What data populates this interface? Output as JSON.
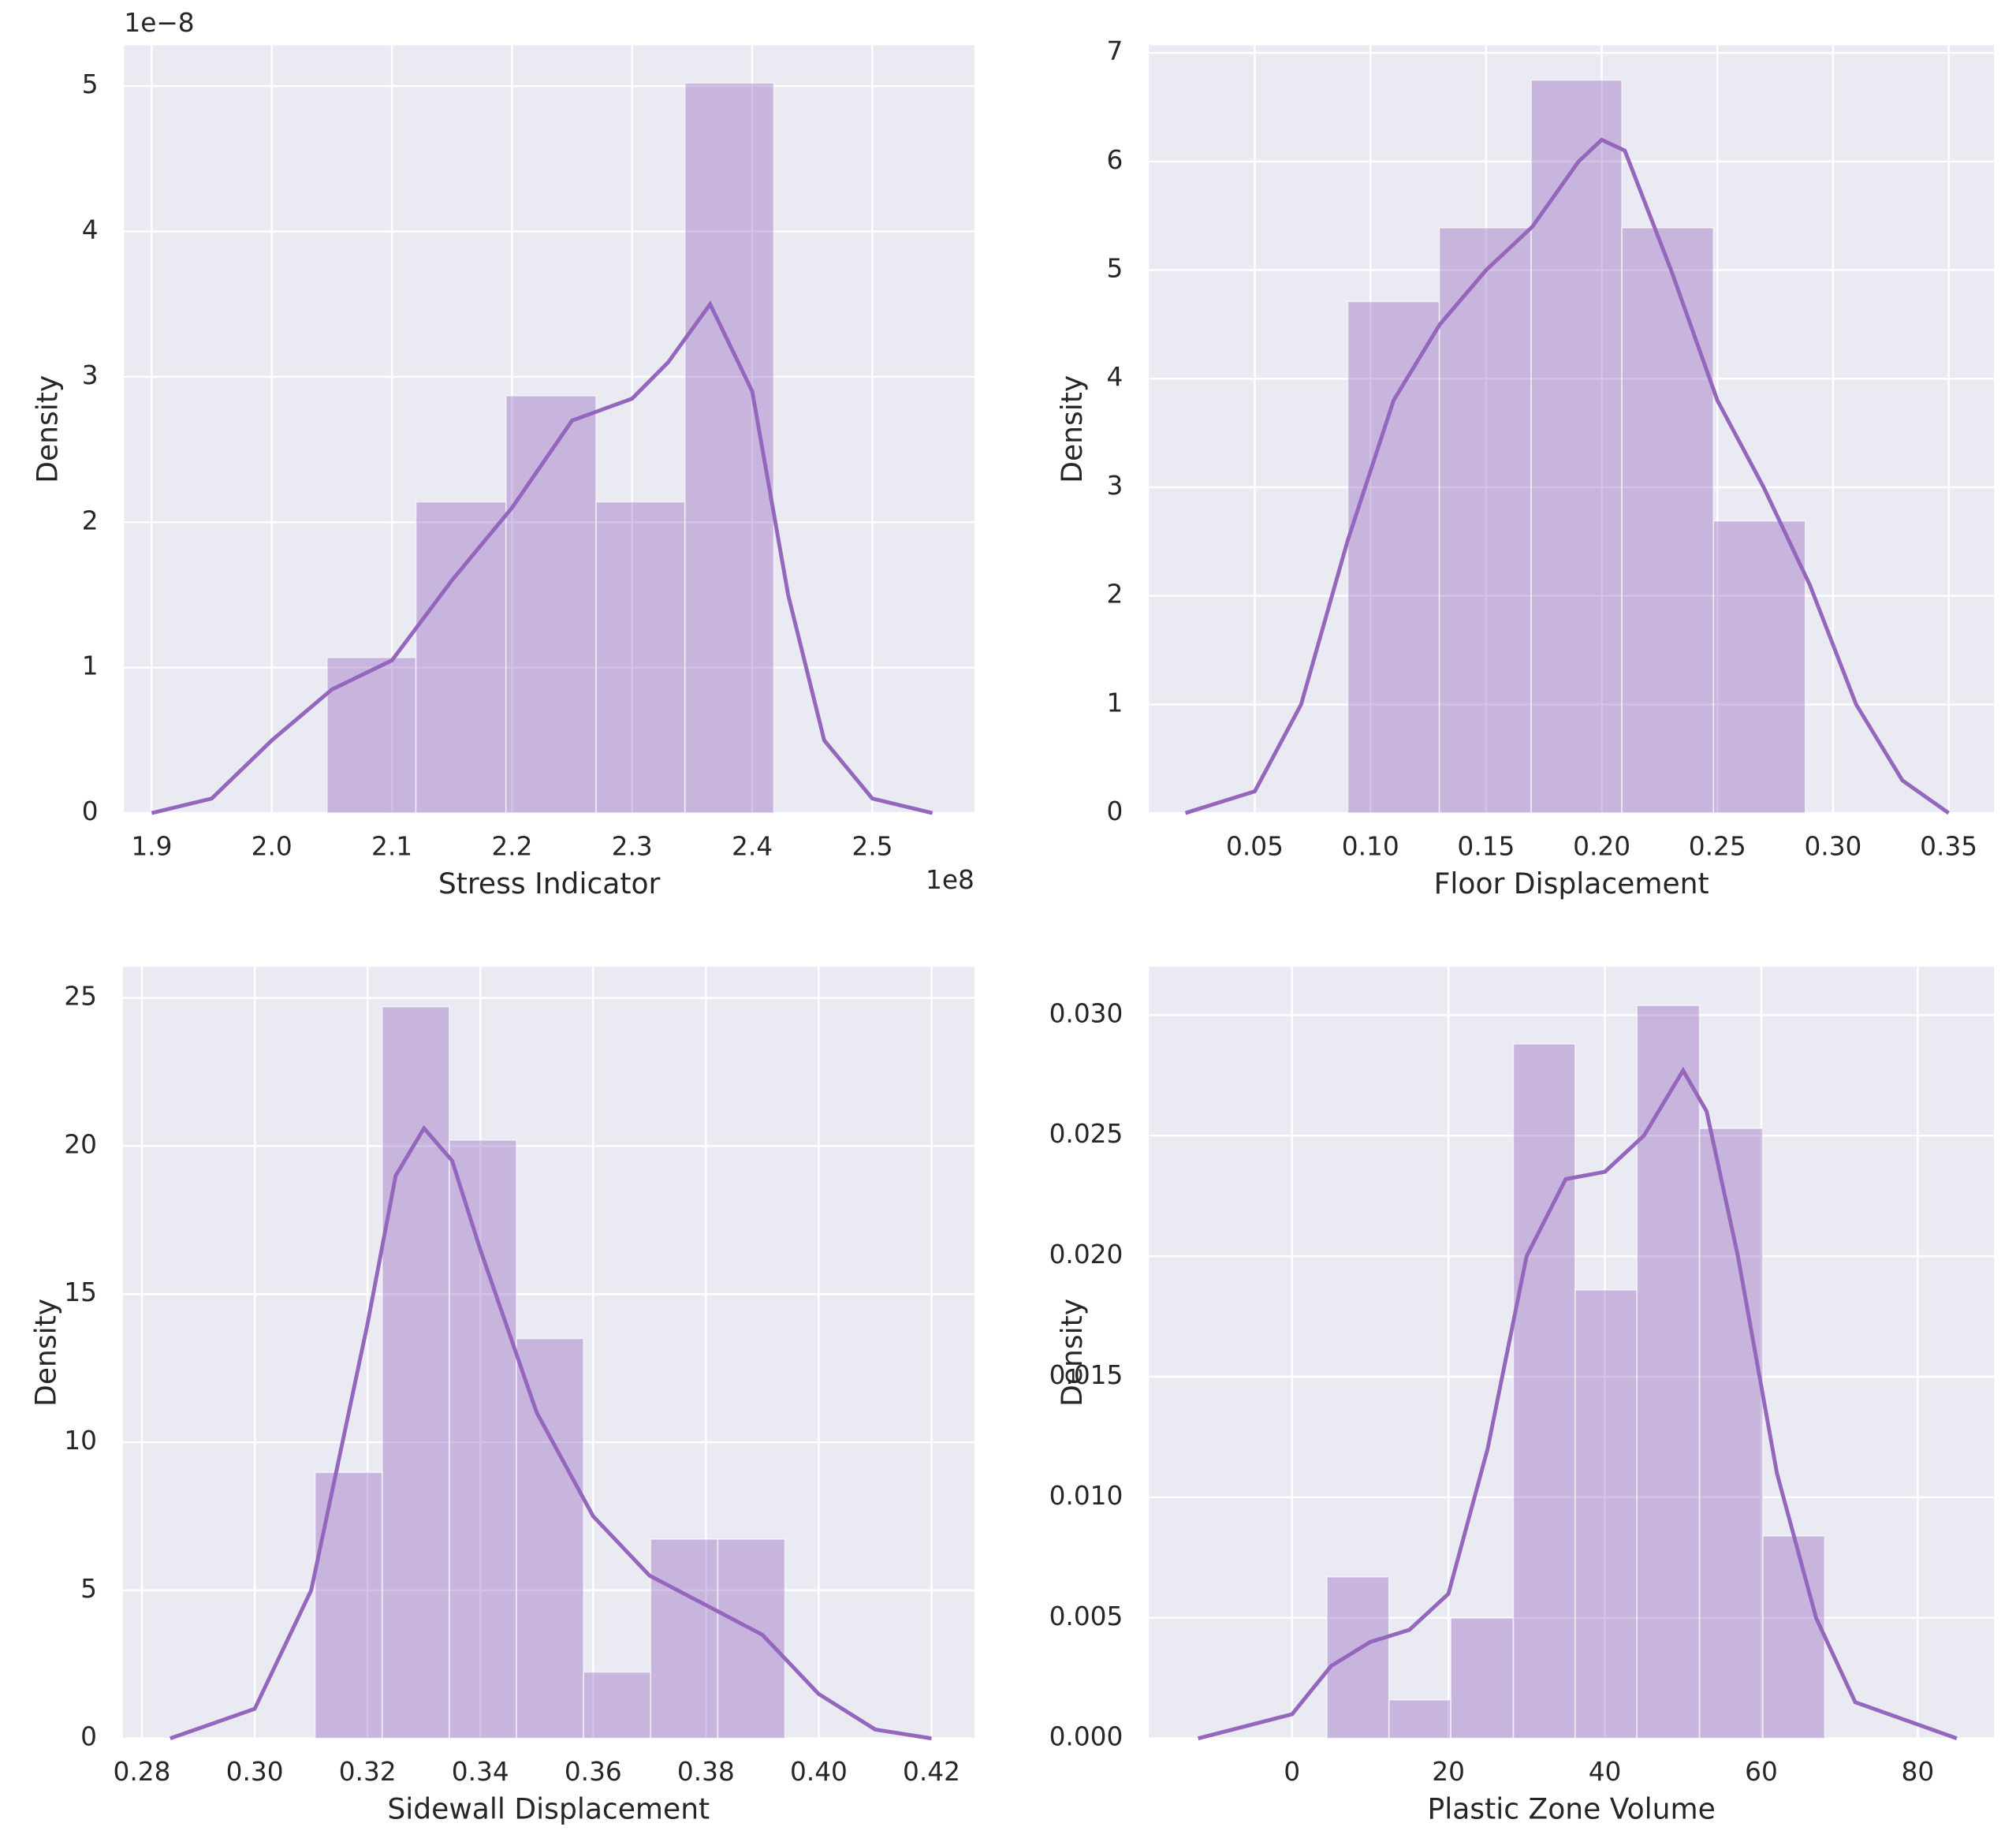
{
  "chart_data": [
    {
      "type": "histogram",
      "xlabel": "Stress Indicator",
      "ylabel": "Density",
      "y_offset_label": "1e−8",
      "x_offset_label": "1e8",
      "color": "#9467bd",
      "grid": true,
      "bins": [
        2.046,
        2.12,
        2.195,
        2.27,
        2.344,
        2.418
      ],
      "values": [
        1.07,
        2.14,
        2.87,
        2.14,
        5.02
      ],
      "kde": {
        "x": [
          1.9,
          1.95,
          2.0,
          2.05,
          2.1,
          2.15,
          2.2,
          2.25,
          2.3,
          2.33,
          2.365,
          2.4,
          2.43,
          2.46,
          2.5,
          2.55
        ],
        "y": [
          0,
          0.1,
          0.5,
          0.85,
          1.05,
          1.6,
          2.1,
          2.7,
          2.85,
          3.1,
          3.5,
          2.9,
          1.5,
          0.5,
          0.1,
          0
        ]
      },
      "xlim": [
        1.877,
        2.585
      ],
      "ylim": [
        0,
        5.28
      ],
      "xticks": [
        1.9,
        {
          "value": 2,
          "label": "2.0"
        },
        2.1,
        2.2,
        2.3,
        2.4,
        2.5
      ],
      "yticks": [
        0,
        1,
        2,
        3,
        4,
        5
      ]
    },
    {
      "type": "histogram",
      "xlabel": "Floor Displacement",
      "ylabel": "Density",
      "color": "#9467bd",
      "grid": true,
      "bins": [
        0.0902,
        0.1298,
        0.1695,
        0.2087,
        0.2483,
        0.288
      ],
      "values": [
        4.71,
        5.39,
        6.75,
        5.39,
        2.69
      ],
      "kde": {
        "x": [
          0.02,
          0.05,
          0.07,
          0.09,
          0.11,
          0.13,
          0.15,
          0.17,
          0.19,
          0.2,
          0.21,
          0.23,
          0.25,
          0.27,
          0.29,
          0.31,
          0.33,
          0.35
        ],
        "y": [
          0,
          0.2,
          1.0,
          2.5,
          3.8,
          4.5,
          5.0,
          5.4,
          6.0,
          6.2,
          6.1,
          5.0,
          3.8,
          3.0,
          2.1,
          1.0,
          0.3,
          0
        ]
      },
      "xlim": [
        0.0042,
        0.3696
      ],
      "ylim": [
        0,
        7.07
      ],
      "xticks": [
        0.05,
        {
          "value": 0.1,
          "label": "0.10"
        },
        0.15,
        {
          "value": 0.2,
          "label": "0.20"
        },
        0.25,
        {
          "value": 0.3,
          "label": "0.30"
        },
        0.35
      ],
      "yticks": [
        0,
        1,
        2,
        3,
        4,
        5,
        6,
        7
      ]
    },
    {
      "type": "histogram",
      "xlabel": "Sidewall Displacement",
      "ylabel": "Density",
      "color": "#9467bd",
      "grid": true,
      "bins": [
        0.3107,
        0.3226,
        0.3345,
        0.3464,
        0.3583,
        0.3702,
        0.3821,
        0.394
      ],
      "values": [
        8.98,
        24.7,
        20.2,
        13.5,
        2.24,
        6.73,
        6.73
      ],
      "kde": {
        "x": [
          0.285,
          0.3,
          0.31,
          0.32,
          0.325,
          0.33,
          0.335,
          0.34,
          0.35,
          0.36,
          0.37,
          0.38,
          0.39,
          0.4,
          0.41,
          0.42
        ],
        "y": [
          0,
          1.0,
          5,
          14,
          19,
          20.6,
          19.5,
          16.5,
          11,
          7.5,
          5.5,
          4.5,
          3.5,
          1.5,
          0.3,
          0
        ]
      },
      "xlim": [
        0.2766,
        0.4276
      ],
      "ylim": [
        0,
        26.05
      ],
      "xticks": [
        0.28,
        {
          "value": 0.3,
          "label": "0.30"
        },
        0.32,
        0.34,
        0.36,
        0.38,
        {
          "value": 0.4,
          "label": "0.40"
        },
        0.42
      ],
      "yticks": [
        0,
        5,
        10,
        15,
        20,
        25
      ]
    },
    {
      "type": "histogram",
      "xlabel": "Plastic Zone Volume",
      "ylabel": "Density",
      "color": "#9467bd",
      "grid": true,
      "bins": [
        4.46,
        12.4,
        20.3,
        28.3,
        36.2,
        44.1,
        52.1,
        60.2,
        68.1
      ],
      "values": [
        0.0067,
        0.0016,
        0.005,
        0.0288,
        0.0186,
        0.0304,
        0.0253,
        0.0084
      ],
      "kde": {
        "x": [
          -12,
          0,
          5,
          10,
          15,
          20,
          25,
          30,
          35,
          40,
          45,
          50,
          53,
          57,
          62,
          67,
          72,
          85
        ],
        "y": [
          0,
          0.001,
          0.003,
          0.004,
          0.0045,
          0.006,
          0.012,
          0.02,
          0.0232,
          0.0235,
          0.025,
          0.0277,
          0.026,
          0.02,
          0.011,
          0.005,
          0.0015,
          0
        ]
      },
      "xlim": [
        -18.3,
        89.75
      ],
      "ylim": [
        0,
        0.032
      ],
      "xticks": [
        0,
        20,
        40,
        60,
        80
      ],
      "yticks": [
        {
          "value": 0,
          "label": "0.000"
        },
        0.005,
        {
          "value": 0.01,
          "label": "0.010"
        },
        0.015,
        {
          "value": 0.02,
          "label": "0.020"
        },
        0.025,
        {
          "value": 0.03,
          "label": "0.030"
        }
      ]
    }
  ]
}
